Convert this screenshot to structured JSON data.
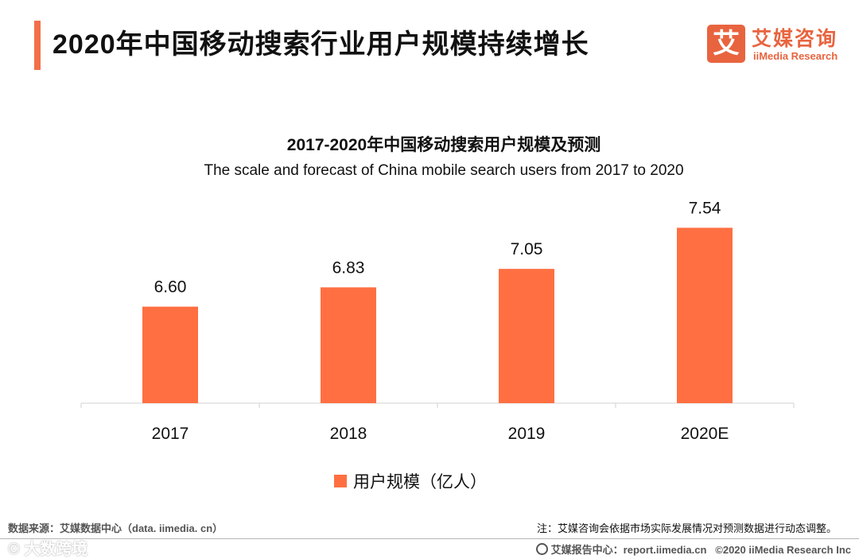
{
  "header": {
    "title": "2020年中国移动搜索行业用户规模持续增长"
  },
  "logo": {
    "mark": "艾",
    "name_cn": "艾媒咨询",
    "name_en": "iiMedia Research"
  },
  "chart_data": {
    "type": "bar",
    "title": "2017-2020年中国移动搜索用户规模及预测",
    "subtitle": "The scale and forecast of China mobile search users from 2017 to 2020",
    "categories": [
      "2017",
      "2018",
      "2019",
      "2020E"
    ],
    "series": [
      {
        "name": "用户规模（亿人）",
        "values": [
          6.6,
          6.83,
          7.05,
          7.54
        ],
        "labels": [
          "6.60",
          "6.83",
          "7.05",
          "7.54"
        ]
      }
    ],
    "xlabel": "",
    "ylabel": "",
    "ylim": [
      5.45,
      7.8
    ],
    "color": "#ff6f42",
    "legend_position": "bottom"
  },
  "footer": {
    "source": "数据来源：艾媒数据中心（data. iimedia. cn）",
    "note": "注：艾媒咨询会依据市场实际发展情况对预测数据进行动态调整。",
    "report_center": "艾媒报告中心：report.iimedia.cn",
    "copyright": "©2020  iiMedia Research  Inc",
    "watermark": "© 大数跨境"
  }
}
